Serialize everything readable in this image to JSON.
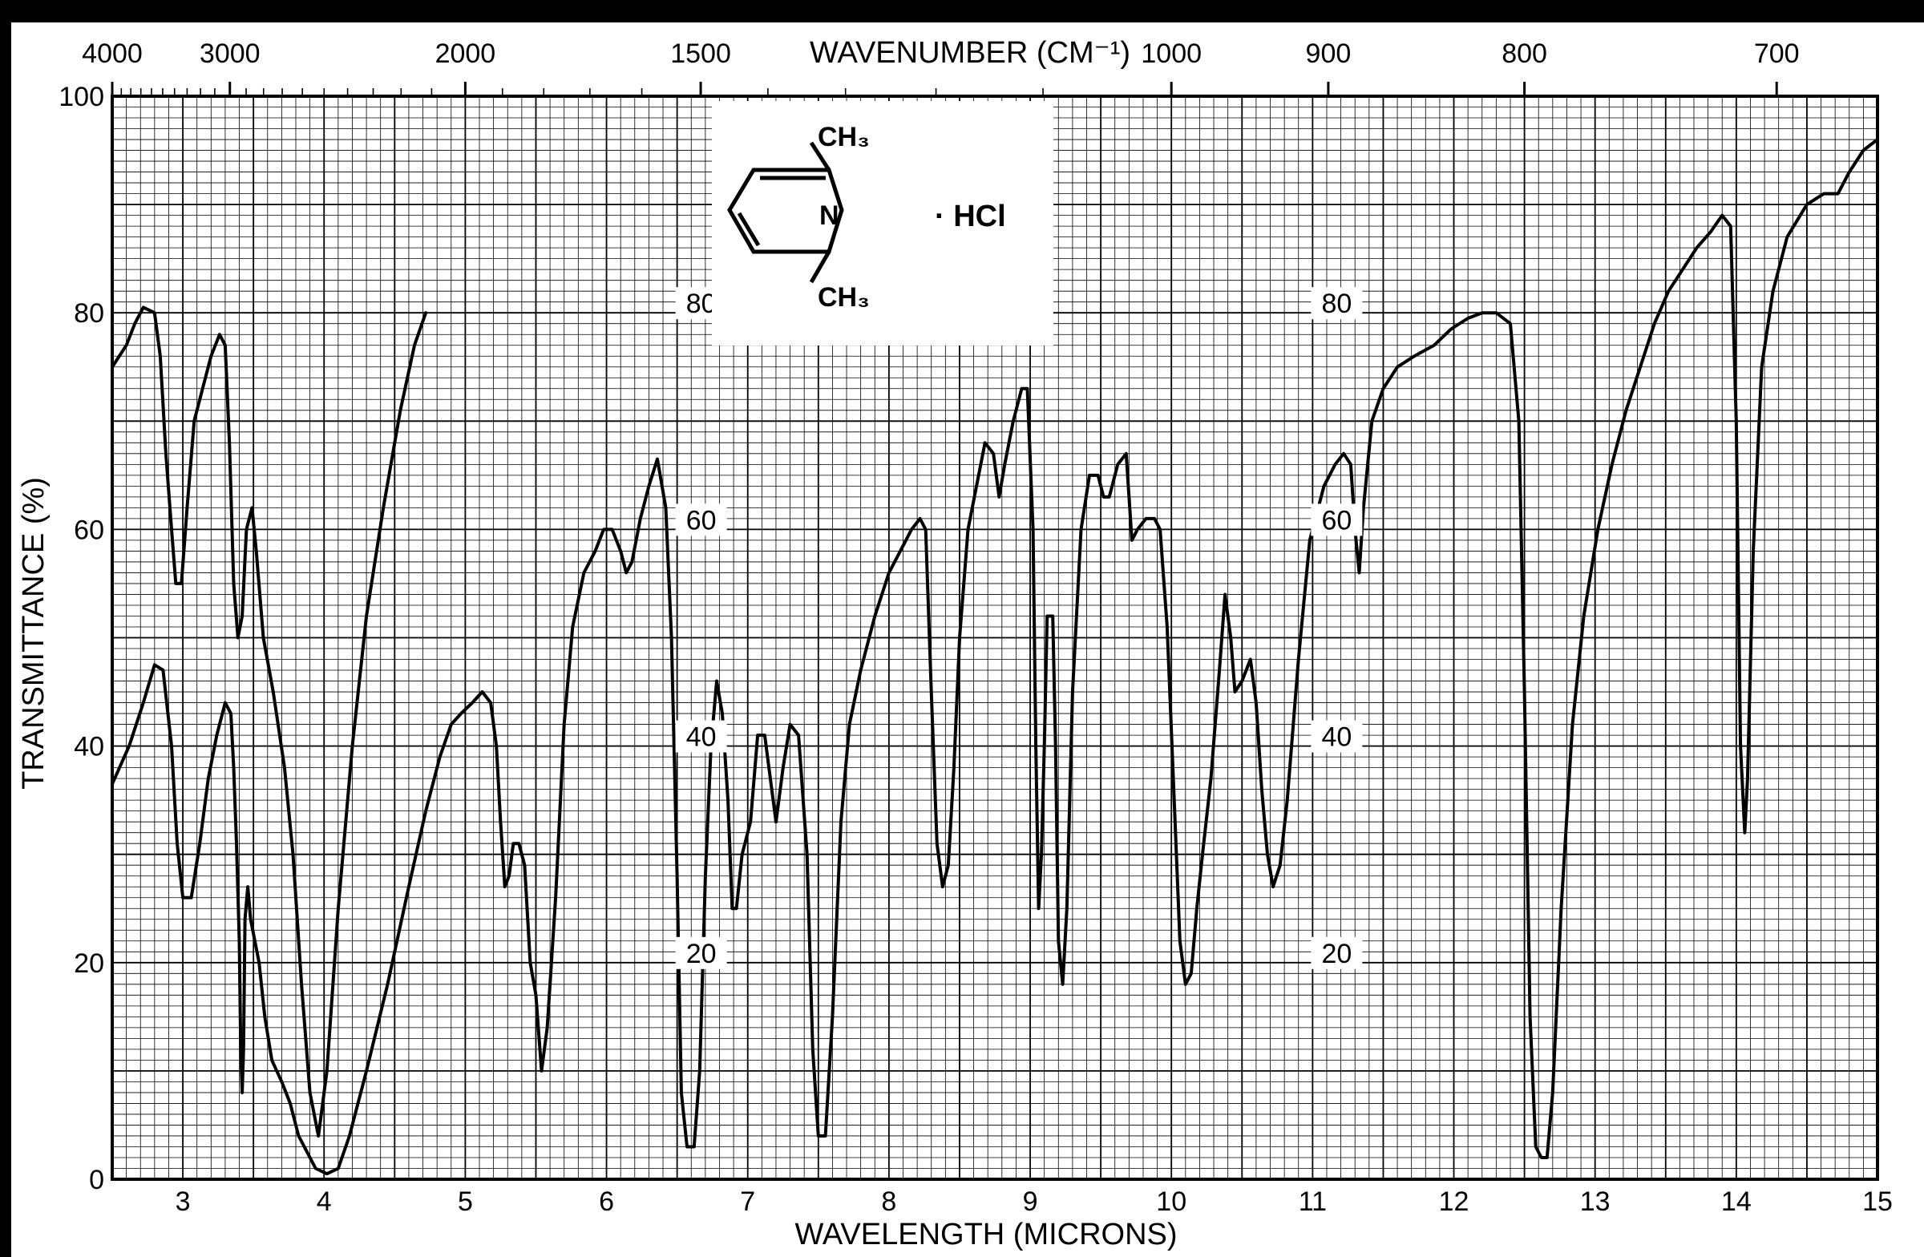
{
  "chart_data": {
    "type": "line",
    "title": "",
    "xlabel": "WAVELENGTH (MICRONS)",
    "x2label": "WAVENUMBER (CM⁻¹)",
    "ylabel": "TRANSMITTANCE (%)",
    "xlim": [
      2.5,
      15
    ],
    "ylim": [
      0,
      100
    ],
    "grid": true,
    "x_ticks": [
      "3",
      "4",
      "5",
      "6",
      "7",
      "8",
      "9",
      "10",
      "11",
      "12",
      "13",
      "14",
      "15"
    ],
    "y_ticks": [
      "0",
      "20",
      "40",
      "60",
      "80",
      "100"
    ],
    "wavenumber_ticks": [
      {
        "label": "4000",
        "x": 2.5
      },
      {
        "label": "3000",
        "x": 3.333
      },
      {
        "label": "2000",
        "x": 5.0
      },
      {
        "label": "1500",
        "x": 6.667
      },
      {
        "label": "1000",
        "x": 10.0
      },
      {
        "label": "900",
        "x": 11.111
      },
      {
        "label": "800",
        "x": 12.5
      },
      {
        "label": "700",
        "x": 14.286
      }
    ],
    "inner_scale_labels": [
      {
        "label": "80",
        "x": 6.5,
        "y": 80
      },
      {
        "label": "60",
        "x": 6.5,
        "y": 60
      },
      {
        "label": "40",
        "x": 6.5,
        "y": 40
      },
      {
        "label": "20",
        "x": 6.5,
        "y": 20
      },
      {
        "label": "80",
        "x": 11.0,
        "y": 80
      },
      {
        "label": "60",
        "x": 11.0,
        "y": 60
      },
      {
        "label": "40",
        "x": 11.0,
        "y": 40
      },
      {
        "label": "20",
        "x": 11.0,
        "y": 20
      }
    ],
    "series": [
      {
        "values": [
          [
            2.5,
            36.5
          ],
          [
            2.62,
            40
          ],
          [
            2.72,
            44
          ],
          [
            2.8,
            47.5
          ],
          [
            2.86,
            47
          ],
          [
            2.92,
            40
          ],
          [
            2.96,
            31
          ],
          [
            3.0,
            26
          ],
          [
            3.06,
            26
          ],
          [
            3.12,
            31
          ],
          [
            3.18,
            37
          ],
          [
            3.24,
            41
          ],
          [
            3.3,
            44
          ],
          [
            3.34,
            43
          ],
          [
            3.36,
            38
          ],
          [
            3.38,
            31
          ],
          [
            3.4,
            22
          ],
          [
            3.41,
            12
          ],
          [
            3.42,
            8
          ],
          [
            3.43,
            12
          ],
          [
            3.44,
            24
          ],
          [
            3.46,
            27
          ],
          [
            3.48,
            24
          ],
          [
            3.51,
            22
          ],
          [
            3.54,
            20
          ],
          [
            3.58,
            15
          ],
          [
            3.63,
            11
          ],
          [
            3.7,
            9
          ],
          [
            3.76,
            7
          ],
          [
            3.82,
            4
          ],
          [
            3.88,
            2.5
          ],
          [
            3.94,
            1
          ],
          [
            4.02,
            0.5
          ],
          [
            4.1,
            1
          ],
          [
            4.18,
            4
          ],
          [
            4.3,
            10
          ],
          [
            4.45,
            18
          ],
          [
            4.6,
            27
          ],
          [
            4.72,
            34
          ],
          [
            4.82,
            39
          ],
          [
            4.9,
            42
          ],
          [
            4.97,
            43
          ],
          [
            5.05,
            44
          ],
          [
            5.12,
            45
          ],
          [
            5.18,
            44
          ],
          [
            5.22,
            40
          ],
          [
            5.25,
            33
          ],
          [
            5.28,
            27
          ],
          [
            5.31,
            28
          ],
          [
            5.34,
            31
          ],
          [
            5.38,
            31
          ],
          [
            5.42,
            29
          ],
          [
            5.46,
            20
          ],
          [
            5.5,
            17
          ],
          [
            5.54,
            10
          ],
          [
            5.58,
            14
          ],
          [
            5.64,
            26
          ],
          [
            5.7,
            42
          ],
          [
            5.76,
            51
          ],
          [
            5.84,
            56
          ],
          [
            5.92,
            58
          ],
          [
            5.98,
            60
          ],
          [
            6.04,
            60
          ],
          [
            6.1,
            58
          ],
          [
            6.14,
            56
          ],
          [
            6.18,
            57
          ],
          [
            6.24,
            61
          ],
          [
            6.3,
            64
          ],
          [
            6.36,
            66.5
          ],
          [
            6.42,
            62
          ],
          [
            6.46,
            50
          ],
          [
            6.5,
            28
          ],
          [
            6.53,
            8
          ],
          [
            6.57,
            3
          ],
          [
            6.62,
            3
          ],
          [
            6.66,
            10
          ],
          [
            6.7,
            28
          ],
          [
            6.74,
            40
          ],
          [
            6.78,
            46
          ],
          [
            6.82,
            43
          ],
          [
            6.86,
            35
          ],
          [
            6.89,
            25
          ],
          [
            6.92,
            25
          ],
          [
            6.96,
            30
          ],
          [
            7.02,
            33
          ],
          [
            7.07,
            41
          ],
          [
            7.12,
            41
          ],
          [
            7.16,
            37
          ],
          [
            7.2,
            33
          ],
          [
            7.25,
            38
          ],
          [
            7.3,
            42
          ],
          [
            7.36,
            41
          ],
          [
            7.42,
            30
          ],
          [
            7.46,
            12
          ],
          [
            7.5,
            4
          ],
          [
            7.55,
            4
          ],
          [
            7.6,
            15
          ],
          [
            7.66,
            33
          ],
          [
            7.72,
            42
          ],
          [
            7.8,
            47
          ],
          [
            7.9,
            52
          ],
          [
            8.0,
            56
          ],
          [
            8.08,
            58
          ],
          [
            8.16,
            60
          ],
          [
            8.22,
            61
          ],
          [
            8.26,
            60
          ],
          [
            8.3,
            45
          ],
          [
            8.34,
            31
          ],
          [
            8.38,
            27
          ],
          [
            8.42,
            29
          ],
          [
            8.46,
            38
          ],
          [
            8.5,
            50
          ],
          [
            8.56,
            60
          ],
          [
            8.62,
            64
          ],
          [
            8.68,
            68
          ],
          [
            8.74,
            67
          ],
          [
            8.78,
            63
          ],
          [
            8.82,
            66
          ],
          [
            8.88,
            70
          ],
          [
            8.94,
            73
          ],
          [
            8.98,
            73
          ],
          [
            9.02,
            60
          ],
          [
            9.04,
            40
          ],
          [
            9.06,
            25
          ],
          [
            9.08,
            30
          ],
          [
            9.1,
            40
          ],
          [
            9.12,
            52
          ],
          [
            9.16,
            52
          ],
          [
            9.18,
            40
          ],
          [
            9.2,
            22
          ],
          [
            9.23,
            18
          ],
          [
            9.26,
            25
          ],
          [
            9.3,
            45
          ],
          [
            9.36,
            60
          ],
          [
            9.42,
            65
          ],
          [
            9.48,
            65
          ],
          [
            9.52,
            63
          ],
          [
            9.56,
            63
          ],
          [
            9.62,
            66
          ],
          [
            9.68,
            67
          ],
          [
            9.72,
            59
          ],
          [
            9.76,
            60
          ],
          [
            9.82,
            61
          ],
          [
            9.88,
            61
          ],
          [
            9.92,
            60
          ],
          [
            9.97,
            51
          ],
          [
            10.02,
            35
          ],
          [
            10.06,
            22
          ],
          [
            10.1,
            18
          ],
          [
            10.14,
            19
          ],
          [
            10.18,
            25
          ],
          [
            10.22,
            30
          ],
          [
            10.28,
            37
          ],
          [
            10.34,
            47
          ],
          [
            10.38,
            54
          ],
          [
            10.42,
            50
          ],
          [
            10.45,
            45
          ],
          [
            10.5,
            46
          ],
          [
            10.56,
            48
          ],
          [
            10.6,
            44
          ],
          [
            10.64,
            36
          ],
          [
            10.68,
            30
          ],
          [
            10.72,
            27
          ],
          [
            10.77,
            29
          ],
          [
            10.82,
            35
          ],
          [
            10.9,
            48
          ],
          [
            10.98,
            59
          ],
          [
            11.08,
            64
          ],
          [
            11.16,
            66
          ],
          [
            11.22,
            67
          ],
          [
            11.27,
            66
          ],
          [
            11.3,
            60
          ],
          [
            11.33,
            56
          ],
          [
            11.36,
            62
          ],
          [
            11.42,
            70
          ],
          [
            11.5,
            73
          ],
          [
            11.6,
            75
          ],
          [
            11.72,
            76
          ],
          [
            11.86,
            77
          ],
          [
            11.98,
            78.5
          ],
          [
            12.1,
            79.5
          ],
          [
            12.2,
            80
          ],
          [
            12.3,
            80
          ],
          [
            12.4,
            79
          ],
          [
            12.46,
            70
          ],
          [
            12.5,
            45
          ],
          [
            12.54,
            15
          ],
          [
            12.58,
            3
          ],
          [
            12.62,
            2
          ],
          [
            12.66,
            2
          ],
          [
            12.7,
            8
          ],
          [
            12.76,
            25
          ],
          [
            12.84,
            42
          ],
          [
            12.92,
            52
          ],
          [
            13.02,
            60
          ],
          [
            13.12,
            66
          ],
          [
            13.22,
            71
          ],
          [
            13.32,
            75
          ],
          [
            13.42,
            79
          ],
          [
            13.52,
            82
          ],
          [
            13.62,
            84
          ],
          [
            13.72,
            86
          ],
          [
            13.82,
            87.5
          ],
          [
            13.9,
            89
          ],
          [
            13.96,
            88
          ],
          [
            14.0,
            70
          ],
          [
            14.03,
            40
          ],
          [
            14.06,
            32
          ],
          [
            14.08,
            37
          ],
          [
            14.12,
            58
          ],
          [
            14.18,
            75
          ],
          [
            14.26,
            82
          ],
          [
            14.36,
            87
          ],
          [
            14.5,
            90
          ],
          [
            14.62,
            91
          ],
          [
            14.72,
            91
          ],
          [
            14.8,
            93
          ],
          [
            14.9,
            95
          ],
          [
            15.0,
            96
          ]
        ]
      },
      {
        "values": [
          [
            2.5,
            75
          ],
          [
            2.6,
            77
          ],
          [
            2.66,
            79
          ],
          [
            2.72,
            80.5
          ],
          [
            2.8,
            80
          ],
          [
            2.84,
            76
          ],
          [
            2.88,
            67
          ],
          [
            2.92,
            60
          ],
          [
            2.95,
            55
          ],
          [
            2.99,
            55
          ],
          [
            3.03,
            62
          ],
          [
            3.08,
            70
          ],
          [
            3.14,
            73
          ],
          [
            3.2,
            76
          ],
          [
            3.26,
            78
          ],
          [
            3.3,
            77
          ],
          [
            3.33,
            68
          ],
          [
            3.36,
            55
          ],
          [
            3.39,
            50
          ],
          [
            3.42,
            52
          ],
          [
            3.45,
            60
          ],
          [
            3.49,
            62
          ],
          [
            3.52,
            58
          ],
          [
            3.57,
            50
          ],
          [
            3.64,
            45
          ],
          [
            3.72,
            38
          ],
          [
            3.78,
            30
          ],
          [
            3.84,
            18
          ],
          [
            3.9,
            8
          ],
          [
            3.96,
            4
          ],
          [
            4.02,
            10
          ],
          [
            4.1,
            25
          ],
          [
            4.2,
            40
          ],
          [
            4.3,
            52
          ],
          [
            4.42,
            62
          ],
          [
            4.54,
            71
          ],
          [
            4.64,
            77
          ],
          [
            4.72,
            80
          ]
        ]
      }
    ]
  },
  "structure": {
    "methyl_top": "CH₃",
    "methyl_bottom": "CH₃",
    "nitrogen": "N",
    "salt": "· HCl"
  }
}
